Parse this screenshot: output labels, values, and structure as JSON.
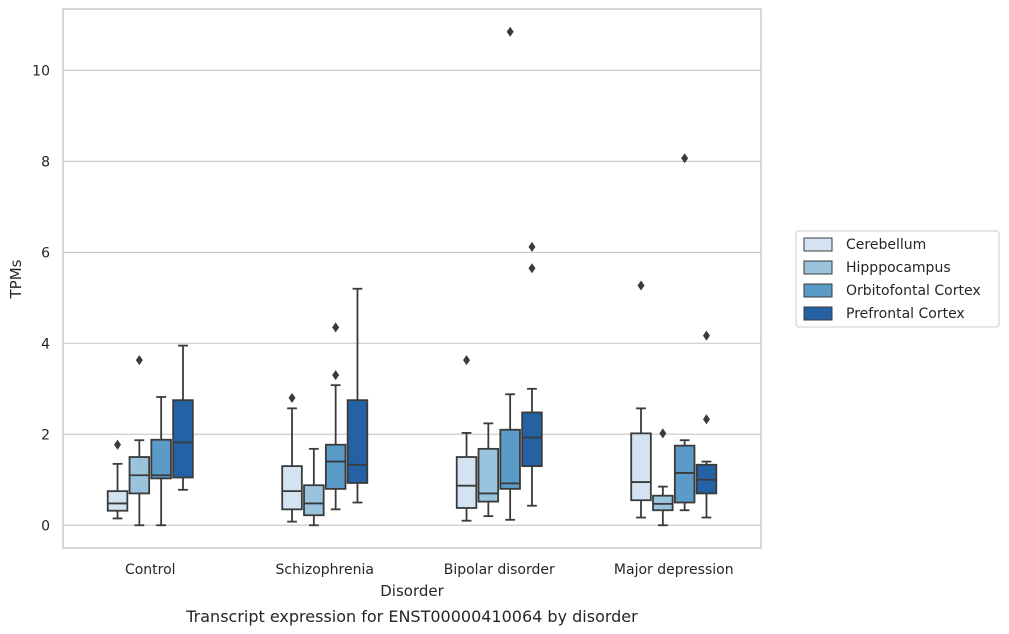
{
  "chart_data": {
    "type": "box",
    "xlabel": "Disorder",
    "ylabel": "TPMs",
    "caption": "Transcript expression for ENST00000410064 by disorder",
    "ylim": [
      -0.5,
      11.35
    ],
    "yticks": [
      "0",
      "2",
      "4",
      "6",
      "8",
      "10"
    ],
    "grid": "horizontal",
    "legend_position": "right",
    "categories": [
      "Control",
      "Schizophrenia",
      "Bipolar disorder",
      "Major depression"
    ],
    "series": [
      {
        "name": "Cerebellum",
        "color": "#d3e3f2",
        "boxes": [
          {
            "whislo": 0.15,
            "q1": 0.32,
            "med": 0.48,
            "q3": 0.75,
            "whishi": 1.35,
            "fliers": [
              1.77
            ]
          },
          {
            "whislo": 0.08,
            "q1": 0.35,
            "med": 0.75,
            "q3": 1.3,
            "whishi": 2.57,
            "fliers": [
              2.8
            ]
          },
          {
            "whislo": 0.1,
            "q1": 0.38,
            "med": 0.87,
            "q3": 1.5,
            "whishi": 2.03,
            "fliers": [
              3.63
            ]
          },
          {
            "whislo": 0.17,
            "q1": 0.55,
            "med": 0.95,
            "q3": 2.02,
            "whishi": 2.57,
            "fliers": [
              5.27
            ]
          }
        ]
      },
      {
        "name": "Hipppocampus",
        "color": "#9ac3dd",
        "boxes": [
          {
            "whislo": 0.0,
            "q1": 0.7,
            "med": 1.1,
            "q3": 1.5,
            "whishi": 1.87,
            "fliers": [
              3.63
            ]
          },
          {
            "whislo": 0.0,
            "q1": 0.22,
            "med": 0.48,
            "q3": 0.88,
            "whishi": 1.68,
            "fliers": []
          },
          {
            "whislo": 0.2,
            "q1": 0.52,
            "med": 0.7,
            "q3": 1.68,
            "whishi": 2.24,
            "fliers": []
          },
          {
            "whislo": 0.0,
            "q1": 0.33,
            "med": 0.47,
            "q3": 0.65,
            "whishi": 0.85,
            "fliers": [
              2.02
            ]
          }
        ]
      },
      {
        "name": "Orbitofontal Cortex",
        "color": "#5a9bc7",
        "boxes": [
          {
            "whislo": 0.0,
            "q1": 1.03,
            "med": 1.1,
            "q3": 1.88,
            "whishi": 2.82,
            "fliers": []
          },
          {
            "whislo": 0.35,
            "q1": 0.8,
            "med": 1.4,
            "q3": 1.77,
            "whishi": 3.08,
            "fliers": [
              3.3,
              4.35
            ]
          },
          {
            "whislo": 0.12,
            "q1": 0.8,
            "med": 0.92,
            "q3": 2.1,
            "whishi": 2.88,
            "fliers": [
              10.85
            ]
          },
          {
            "whislo": 0.33,
            "q1": 0.5,
            "med": 1.15,
            "q3": 1.75,
            "whishi": 1.87,
            "fliers": [
              8.07
            ]
          }
        ]
      },
      {
        "name": "Prefrontal Cortex",
        "color": "#2562a5",
        "boxes": [
          {
            "whislo": 0.78,
            "q1": 1.05,
            "med": 1.82,
            "q3": 2.75,
            "whishi": 3.95,
            "fliers": []
          },
          {
            "whislo": 0.5,
            "q1": 0.93,
            "med": 1.33,
            "q3": 2.75,
            "whishi": 5.2,
            "fliers": []
          },
          {
            "whislo": 0.43,
            "q1": 1.3,
            "med": 1.93,
            "q3": 2.48,
            "whishi": 3.0,
            "fliers": [
              5.65,
              6.12
            ]
          },
          {
            "whislo": 0.17,
            "q1": 0.7,
            "med": 1.0,
            "q3": 1.33,
            "whishi": 1.4,
            "fliers": [
              2.33,
              4.17
            ]
          }
        ]
      }
    ]
  }
}
